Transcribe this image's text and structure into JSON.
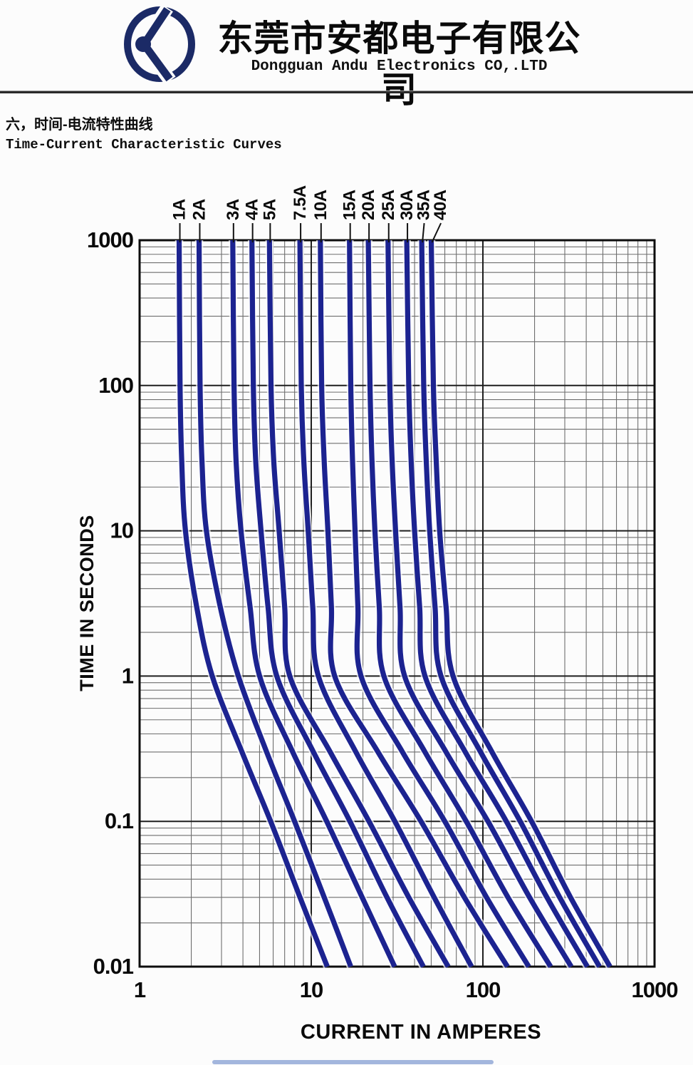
{
  "header": {
    "company_zh": "东莞市安都电子有限公司",
    "company_en": "Dongguan Andu Electronics CO,.LTD"
  },
  "section": {
    "title_zh": "六，时间-电流特性曲线",
    "title_en": "Time-Current Characteristic Curves"
  },
  "chart_data": {
    "type": "line",
    "title": "Time-Current Characteristic Curves",
    "xlabel": "CURRENT IN AMPERES",
    "ylabel": "TIME IN SECONDS",
    "x_scale": "log",
    "y_scale": "log",
    "xlim": [
      1,
      1000
    ],
    "ylim": [
      0.01,
      1000
    ],
    "x_ticks": [
      "1",
      "10",
      "100",
      "1000"
    ],
    "y_ticks": [
      "1000",
      "100",
      "10",
      "1",
      "0.1",
      "0.01"
    ],
    "grid": "log-log with minor decade lines",
    "curve_color": "#1c2390",
    "sample_times": [
      1000,
      100,
      30,
      10,
      3,
      1,
      0.3,
      0.1,
      0.03,
      0.01
    ],
    "series": [
      {
        "name": "1A",
        "rating_amps": 1,
        "currents": [
          1.7,
          1.72,
          1.76,
          1.85,
          2.15,
          2.65,
          3.95,
          5.8,
          8.6,
          12.4
        ]
      },
      {
        "name": "2A",
        "rating_amps": 2,
        "currents": [
          2.22,
          2.25,
          2.31,
          2.45,
          2.95,
          3.76,
          5.5,
          8.0,
          11.9,
          17.0
        ]
      },
      {
        "name": "3A",
        "rating_amps": 3,
        "currents": [
          3.49,
          3.55,
          3.65,
          3.9,
          4.4,
          5.0,
          7.8,
          12.3,
          19.8,
          30.6
        ]
      },
      {
        "name": "4A",
        "rating_amps": 4,
        "currents": [
          4.51,
          4.6,
          4.75,
          5.1,
          5.6,
          6.3,
          10.3,
          16.8,
          27.6,
          45.0
        ]
      },
      {
        "name": "5A",
        "rating_amps": 5,
        "currents": [
          5.71,
          5.83,
          6.05,
          6.5,
          7.0,
          7.5,
          12.9,
          21.7,
          37.0,
          62.8
        ]
      },
      {
        "name": "7.5A",
        "rating_amps": 7.5,
        "currents": [
          8.59,
          8.75,
          9.05,
          9.6,
          10.2,
          11.0,
          18.2,
          30.7,
          52.0,
          85.9
        ]
      },
      {
        "name": "10A",
        "rating_amps": 10,
        "currents": [
          11.3,
          11.5,
          11.9,
          12.5,
          13.1,
          13.7,
          24.5,
          43.6,
          78.0,
          139
        ]
      },
      {
        "name": "15A",
        "rating_amps": 15,
        "currents": [
          16.7,
          17.0,
          17.4,
          18.0,
          18.7,
          19.5,
          34.0,
          60.0,
          105,
          185
        ]
      },
      {
        "name": "20A",
        "rating_amps": 20,
        "currents": [
          21.5,
          22.0,
          22.6,
          23.5,
          24.9,
          26.5,
          46.0,
          80.0,
          140,
          248
        ]
      },
      {
        "name": "25A",
        "rating_amps": 25,
        "currents": [
          28.0,
          28.7,
          29.6,
          31.0,
          32.9,
          35.0,
          61.0,
          107,
          187,
          327
        ]
      },
      {
        "name": "30A",
        "rating_amps": 30,
        "currents": [
          36.0,
          37.0,
          38.2,
          40.0,
          42.8,
          46.0,
          79.0,
          137,
          236,
          406
        ]
      },
      {
        "name": "35A",
        "rating_amps": 35,
        "currents": [
          44.0,
          45.2,
          46.8,
          49.0,
          52.6,
          57.0,
          97.0,
          165,
          280,
          478
        ]
      },
      {
        "name": "40A",
        "rating_amps": 40,
        "currents": [
          50.0,
          51.5,
          53.5,
          56.0,
          61.0,
          67.0,
          113,
          192,
          324,
          550
        ]
      }
    ]
  }
}
